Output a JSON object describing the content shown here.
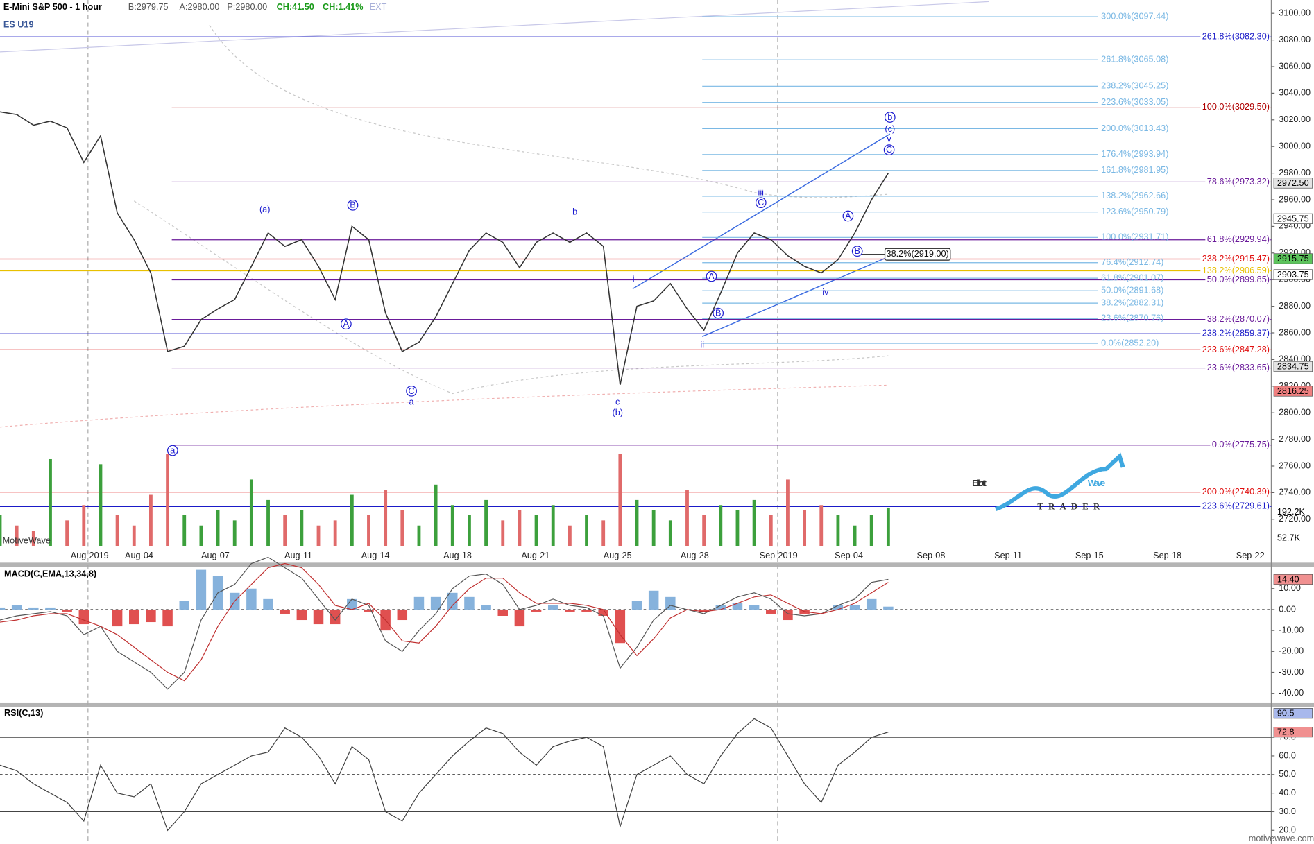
{
  "header": {
    "title": "E-Mini S&P 500 - 1 hour",
    "bid": "B:2979.75",
    "ask": "A:2980.00",
    "price": "P:2980.00",
    "change": "CH:41.50",
    "change_pct": "CH:1.41%",
    "session": "EXT",
    "symbol": "ES U19",
    "watermark": "MotiveWave",
    "site": "motivewave.com",
    "logo_main_1": "Elliott",
    "logo_main_2": "Wave",
    "logo_sub": "TRADER",
    "volume_tags": [
      "192.2K",
      "52.7K"
    ]
  },
  "chart_data": [
    {
      "type": "line",
      "color": "#333333",
      "values": [
        3026,
        3024,
        3016,
        3019,
        3014,
        2988,
        3008,
        2950,
        2930,
        2905,
        2846,
        2850,
        2870,
        2878,
        2885,
        2910,
        2935,
        2925,
        2930,
        2910,
        2885,
        2940,
        2930,
        2875,
        2846,
        2853,
        2872,
        2897,
        2922,
        2935,
        2928,
        2909,
        2928,
        2935,
        2928,
        2935,
        2925,
        2821,
        2880,
        2884,
        2897,
        2878,
        2862,
        2890,
        2920,
        2935,
        2930,
        2918,
        2910,
        2905,
        2915,
        2935,
        2960,
        2980
      ],
      "ylim": [
        2700,
        3110
      ],
      "yticks": [
        {
          "value": 2720,
          "label": "2720.00"
        },
        {
          "value": 2740,
          "label": "2740.00"
        },
        {
          "value": 2760,
          "label": "2760.00"
        },
        {
          "value": 2780,
          "label": "2780.00"
        },
        {
          "value": 2800,
          "label": "2800.00"
        },
        {
          "value": 2820,
          "label": "2820.00"
        },
        {
          "value": 2840,
          "label": "2840.00"
        },
        {
          "value": 2860,
          "label": "2860.00"
        },
        {
          "value": 2880,
          "label": "2880.00"
        },
        {
          "value": 2900,
          "label": "2900.00"
        },
        {
          "value": 2920,
          "label": "2920.00"
        },
        {
          "value": 2940,
          "label": "2940.00"
        },
        {
          "value": 2960,
          "label": "2960.00"
        },
        {
          "value": 2980,
          "label": "2980.00"
        },
        {
          "value": 3000,
          "label": "3000.00"
        },
        {
          "value": 3020,
          "label": "3020.00"
        },
        {
          "value": 3040,
          "label": "3040.00"
        },
        {
          "value": 3060,
          "label": "3060.00"
        },
        {
          "value": 3080,
          "label": "3080.00"
        },
        {
          "value": 3100,
          "label": "3100.00"
        }
      ],
      "x_labels": [
        "Aug-2019",
        "Aug-04",
        "Aug-07",
        "Aug-11",
        "Aug-14",
        "Aug-18",
        "Aug-21",
        "Aug-25",
        "Aug-28",
        "Sep-2019",
        "Sep-04",
        "Sep-08",
        "Sep-11",
        "Sep-15",
        "Sep-18",
        "Sep-22"
      ],
      "levels": [
        {
          "label": "261.8%(3082.30)",
          "value": 3082.3,
          "color": "#1a1ac8"
        },
        {
          "label": "100.0%(3029.50)",
          "value": 3029.5,
          "color": "#b00000"
        },
        {
          "label": "78.6%(2973.32)",
          "value": 2973.32,
          "color": "#6a1a9a"
        },
        {
          "label": "61.8%(2929.94)",
          "value": 2929.94,
          "color": "#6a1a9a"
        },
        {
          "label": "238.2%(2915.47)",
          "value": 2915.47,
          "color": "#e01010"
        },
        {
          "label": "138.2%(2906.59)",
          "value": 2906.59,
          "color": "#e8c000"
        },
        {
          "label": "50.0%(2899.85)",
          "value": 2899.85,
          "color": "#6a1a9a"
        },
        {
          "label": "38.2%(2870.07)",
          "value": 2870.07,
          "color": "#6a1a9a"
        },
        {
          "label": "238.2%(2859.37)",
          "value": 2859.37,
          "color": "#1a1ac8"
        },
        {
          "label": "223.6%(2847.28)",
          "value": 2847.28,
          "color": "#e01010"
        },
        {
          "label": "23.6%(2833.65)",
          "value": 2833.65,
          "color": "#6a1a9a"
        },
        {
          "label": "0.0%(2775.75)",
          "value": 2775.75,
          "color": "#6a1a9a"
        },
        {
          "label": "200.0%(2740.39)",
          "value": 2740.39,
          "color": "#e01010"
        },
        {
          "label": "223.6%(2729.61)",
          "value": 2729.61,
          "color": "#1a1ac8"
        }
      ],
      "projection_color": "#7ab8e4",
      "projection_levels": [
        {
          "label": "300.0%(3097.44)",
          "value": 3097.44
        },
        {
          "label": "261.8%(3065.08)",
          "value": 3065.08
        },
        {
          "label": "238.2%(3045.25)",
          "value": 3045.25
        },
        {
          "label": "223.6%(3033.05)",
          "value": 3033.05
        },
        {
          "label": "200.0%(3013.43)",
          "value": 3013.43
        },
        {
          "label": "176.4%(2993.94)",
          "value": 2993.94
        },
        {
          "label": "161.8%(2981.95)",
          "value": 2981.95
        },
        {
          "label": "138.2%(2962.66)",
          "value": 2962.66
        },
        {
          "label": "123.6%(2950.79)",
          "value": 2950.79
        },
        {
          "label": "100.0%(2931.71)",
          "value": 2931.71
        },
        {
          "label": "76.4%(2912.74)",
          "value": 2912.74
        },
        {
          "label": "61.8%(2901.07)",
          "value": 2901.07
        },
        {
          "label": "50.0%(2891.68)",
          "value": 2891.68
        },
        {
          "label": "38.2%(2882.31)",
          "value": 2882.31
        },
        {
          "label": "23.6%(2870.76)",
          "value": 2870.76
        },
        {
          "label": "0.0%(2852.20)",
          "value": 2852.2
        }
      ],
      "box_label": {
        "label": "38.2%(2919.00)",
        "value": 2919
      },
      "wave_color": "#1a1ad0",
      "wave_labels": [
        {
          "text": "(a)",
          "circled": false
        },
        {
          "text": "B",
          "circled": true
        },
        {
          "text": "A",
          "circled": true
        },
        {
          "text": "C",
          "circled": true
        },
        {
          "text": "a",
          "circled": false
        },
        {
          "text": "b",
          "circled": false
        },
        {
          "text": "c",
          "circled": false
        },
        {
          "text": "(b)",
          "circled": false
        },
        {
          "text": "i",
          "circled": false
        },
        {
          "text": "ii",
          "circled": false
        },
        {
          "text": "A",
          "circled": true
        },
        {
          "text": "B",
          "circled": true
        },
        {
          "text": "iii",
          "circled": false
        },
        {
          "text": "C",
          "circled": true
        },
        {
          "text": "iv",
          "circled": false
        },
        {
          "text": "A",
          "circled": true
        },
        {
          "text": "B",
          "circled": true
        },
        {
          "text": "C",
          "circled": true
        },
        {
          "text": "v",
          "circled": false
        },
        {
          "text": "(c)",
          "circled": false
        },
        {
          "text": "b",
          "circled": true
        },
        {
          "text": "a",
          "circled": true
        }
      ],
      "price_tags": [
        {
          "value": 2972.5,
          "label": "2972.50",
          "color": "#e4e4e4"
        },
        {
          "value": 2945.75,
          "label": "2945.75",
          "color": "#ffffff"
        },
        {
          "value": 2915.75,
          "label": "2915.75",
          "color": "#5cc45c"
        },
        {
          "value": 2903.75,
          "label": "2903.75",
          "color": "#ffffff"
        },
        {
          "value": 2834.75,
          "label": "2834.75",
          "color": "#e4e4e4"
        },
        {
          "value": 2816.25,
          "label": "2816.25",
          "color": "#f08080"
        }
      ]
    },
    {
      "type": "bar",
      "colors": [
        "#3ca03c",
        "#e06a6a"
      ],
      "ylim": [
        0,
        200
      ],
      "values": [
        60,
        40,
        30,
        170,
        50,
        80,
        160,
        60,
        40,
        100,
        180,
        60,
        40,
        70,
        50,
        130,
        90,
        60,
        70,
        40,
        50,
        100,
        60,
        110,
        70,
        40,
        120,
        80,
        60,
        90,
        50,
        70,
        60,
        80,
        40,
        60,
        50,
        180,
        90,
        70,
        50,
        110,
        60,
        80,
        70,
        90,
        60,
        130,
        70,
        80,
        60,
        40,
        60,
        75
      ]
    },
    {
      "type": "macd",
      "title": "MACD(C,EMA,13,34,8)",
      "ylim": [
        -44,
        20
      ],
      "yticks": [
        {
          "value": 10,
          "label": "10.00"
        },
        {
          "value": 0,
          "label": "0.00"
        },
        {
          "value": -10,
          "label": "-10.00"
        },
        {
          "value": -20,
          "label": "-20.00"
        },
        {
          "value": -30,
          "label": "-30.00"
        },
        {
          "value": -40,
          "label": "-40.00"
        }
      ],
      "series": [
        {
          "color": "#555555",
          "values": [
            -5,
            -3,
            -2,
            -1,
            -3,
            -12,
            -8,
            -20,
            -25,
            -30,
            -38,
            -30,
            -5,
            8,
            12,
            22,
            25,
            20,
            15,
            5,
            -5,
            5,
            2,
            -15,
            -20,
            -10,
            -2,
            10,
            16,
            17,
            12,
            0,
            2,
            5,
            2,
            1,
            -3,
            -28,
            -18,
            -5,
            2,
            0,
            -2,
            2,
            6,
            8,
            5,
            -2,
            -3,
            -2,
            2,
            5,
            13,
            14.4
          ]
        },
        {
          "color": "#c03030",
          "values": [
            -6,
            -5,
            -3,
            -2,
            -2,
            -5,
            -8,
            -12,
            -18,
            -24,
            -30,
            -34,
            -24,
            -8,
            4,
            12,
            20,
            22,
            20,
            12,
            2,
            0,
            3,
            -5,
            -15,
            -16,
            -8,
            2,
            10,
            15,
            15,
            8,
            3,
            3,
            3,
            2,
            0,
            -12,
            -22,
            -14,
            -4,
            0,
            -1,
            0,
            3,
            6,
            7,
            3,
            -1,
            -2,
            0,
            3,
            8,
            13
          ]
        }
      ],
      "histogram": {
        "colors": [
          "#86b2dc",
          "#e05050"
        ],
        "values": [
          1,
          2,
          1,
          1,
          -1,
          -7,
          0,
          -8,
          -7,
          -6,
          -8,
          4,
          19,
          16,
          8,
          10,
          5,
          -2,
          -5,
          -7,
          -7,
          5,
          -1,
          -10,
          -5,
          6,
          6,
          8,
          6,
          2,
          -3,
          -8,
          -1,
          2,
          -1,
          -1,
          -3,
          -16,
          4,
          9,
          6,
          0,
          -1,
          2,
          3,
          2,
          -2,
          -5,
          -2,
          0,
          2,
          2,
          5,
          1.4
        ]
      },
      "tags": [
        {
          "value": 14.4,
          "label": "14.40",
          "color": "#f09090"
        }
      ]
    },
    {
      "type": "rsi",
      "title": "RSI(C,13)",
      "ylim": [
        14,
        86
      ],
      "color": "#404040",
      "yticks": [
        {
          "value": 70,
          "label": "70.0"
        },
        {
          "value": 60,
          "label": "60.0"
        },
        {
          "value": 50,
          "label": "50.0"
        },
        {
          "value": 40,
          "label": "40.0"
        },
        {
          "value": 30,
          "label": "30.0"
        },
        {
          "value": 20,
          "label": "20.0"
        }
      ],
      "values": [
        55,
        52,
        45,
        40,
        35,
        25,
        55,
        40,
        38,
        45,
        20,
        30,
        45,
        50,
        55,
        60,
        62,
        75,
        70,
        60,
        45,
        65,
        58,
        30,
        25,
        40,
        50,
        60,
        68,
        75,
        72,
        62,
        55,
        65,
        68,
        70,
        65,
        22,
        50,
        55,
        60,
        50,
        45,
        60,
        72,
        80,
        75,
        60,
        45,
        35,
        55,
        62,
        70,
        72.8
      ],
      "tags": [
        {
          "value": 90.5,
          "label": "90.5",
          "color": "#a8b8ec"
        },
        {
          "value": 72.8,
          "label": "72.8",
          "color": "#f09090"
        }
      ]
    }
  ]
}
